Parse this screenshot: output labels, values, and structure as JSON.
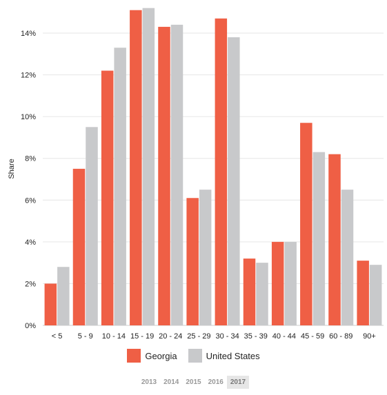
{
  "chart_data": {
    "type": "bar",
    "ylabel": "Share",
    "ylim": [
      0,
      15
    ],
    "y_ticks": [
      0,
      2,
      4,
      6,
      8,
      10,
      12,
      14
    ],
    "y_tick_labels": [
      "0%",
      "2%",
      "4%",
      "6%",
      "8%",
      "10%",
      "12%",
      "14%"
    ],
    "categories": [
      "< 5",
      "5 - 9",
      "10 - 14",
      "15 - 19",
      "20 - 24",
      "25 - 29",
      "30 - 34",
      "35 - 39",
      "40 - 44",
      "45 - 59",
      "60 - 89",
      "90+"
    ],
    "series": [
      {
        "name": "Georgia",
        "color": "#ef5f45",
        "values": [
          2.0,
          7.5,
          12.2,
          15.1,
          14.3,
          6.1,
          14.7,
          3.2,
          4.0,
          9.7,
          8.2,
          3.1
        ]
      },
      {
        "name": "United States",
        "color": "#c8c9cb",
        "values": [
          2.8,
          9.5,
          13.3,
          15.2,
          14.4,
          6.5,
          13.8,
          3.0,
          4.0,
          8.3,
          6.5,
          2.9
        ]
      }
    ],
    "grid": "horizontal",
    "legend_position": "bottom"
  },
  "year_selector": {
    "years": [
      "2013",
      "2014",
      "2015",
      "2016",
      "2017"
    ],
    "selected": "2017"
  }
}
